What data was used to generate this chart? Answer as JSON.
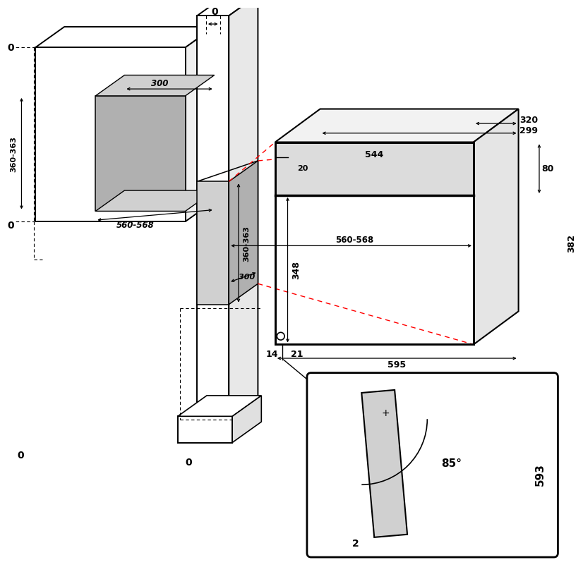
{
  "bg_color": "#ffffff",
  "line_color": "#000000",
  "gray_fill": "#b0b0b0",
  "light_gray_fill": "#d0d0d0",
  "red_dashed": "#ff0000",
  "dims": {
    "360_363": "360-363",
    "560_568": "560-568",
    "300": "300",
    "320": "320",
    "299": "299",
    "544": "544",
    "20": "20",
    "80": "80",
    "382": "382",
    "348": "348",
    "14": "14",
    "21": "21",
    "595": "595",
    "85deg": "85°",
    "593": "593",
    "2": "2",
    "0": "0"
  }
}
